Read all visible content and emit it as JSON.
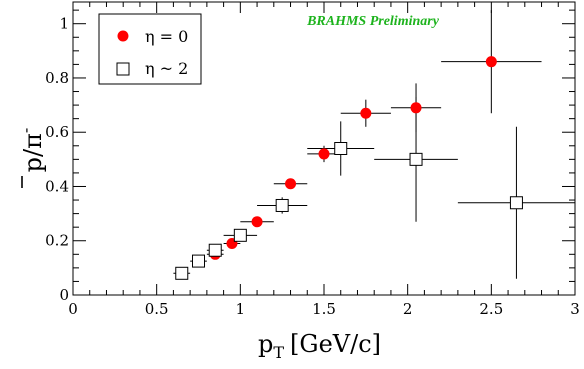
{
  "chart_data": {
    "type": "scatter",
    "title": "",
    "annotation": "BRAHMS Preliminary",
    "xlabel": "p",
    "xlabel_sub": "T",
    "xlabel_unit": "[GeV/c]",
    "ylabel_base": "p/π",
    "ylabel_sup": "-",
    "xlim": [
      0,
      3
    ],
    "ylim": [
      0,
      1.08
    ],
    "xticks": [
      0,
      0.5,
      1,
      1.5,
      2,
      2.5,
      3
    ],
    "xtick_labels": [
      "0",
      "0.5",
      "1",
      "1.5",
      "2",
      "2.5",
      "3"
    ],
    "yticks": [
      0,
      0.2,
      0.4,
      0.6,
      0.8,
      1
    ],
    "ytick_labels": [
      "0",
      "0.2",
      "0.4",
      "0.6",
      "0.8",
      "1"
    ],
    "grid": false,
    "legend_position": "top-left",
    "colors": {
      "eta0": "#ff0000",
      "eta2": "#000000"
    },
    "series": [
      {
        "name": "η = 0",
        "marker": "filled-circle",
        "points": [
          {
            "x": 0.85,
            "y": 0.15,
            "xerr": 0.05,
            "yerr": 0.01
          },
          {
            "x": 0.95,
            "y": 0.19,
            "xerr": 0.05,
            "yerr": 0.01
          },
          {
            "x": 1.1,
            "y": 0.27,
            "xerr": 0.1,
            "yerr": 0.015
          },
          {
            "x": 1.3,
            "y": 0.41,
            "xerr": 0.1,
            "yerr": 0.015
          },
          {
            "x": 1.5,
            "y": 0.52,
            "xerr": 0.1,
            "yerr": 0.03
          },
          {
            "x": 1.75,
            "y": 0.67,
            "xerr": 0.15,
            "yerr": 0.05
          },
          {
            "x": 2.05,
            "y": 0.69,
            "xerr": 0.15,
            "yerr": 0.09
          },
          {
            "x": 2.5,
            "y": 0.86,
            "xerr": 0.3,
            "yerr": 0.19
          }
        ]
      },
      {
        "name": "η ~ 2",
        "marker": "open-square",
        "points": [
          {
            "x": 0.65,
            "y": 0.08,
            "xerr": 0.05,
            "yerr": 0.01
          },
          {
            "x": 0.75,
            "y": 0.125,
            "xerr": 0.05,
            "yerr": 0.01
          },
          {
            "x": 0.85,
            "y": 0.165,
            "xerr": 0.05,
            "yerr": 0.01
          },
          {
            "x": 1.0,
            "y": 0.22,
            "xerr": 0.1,
            "yerr": 0.015
          },
          {
            "x": 1.25,
            "y": 0.33,
            "xerr": 0.15,
            "yerr": 0.03
          },
          {
            "x": 1.6,
            "y": 0.54,
            "xerr": 0.2,
            "yerr": 0.1
          },
          {
            "x": 2.05,
            "y": 0.5,
            "xerr": 0.25,
            "yerr": 0.23
          },
          {
            "x": 2.65,
            "y": 0.34,
            "xerr": 0.35,
            "yerr": 0.28
          }
        ]
      }
    ]
  }
}
